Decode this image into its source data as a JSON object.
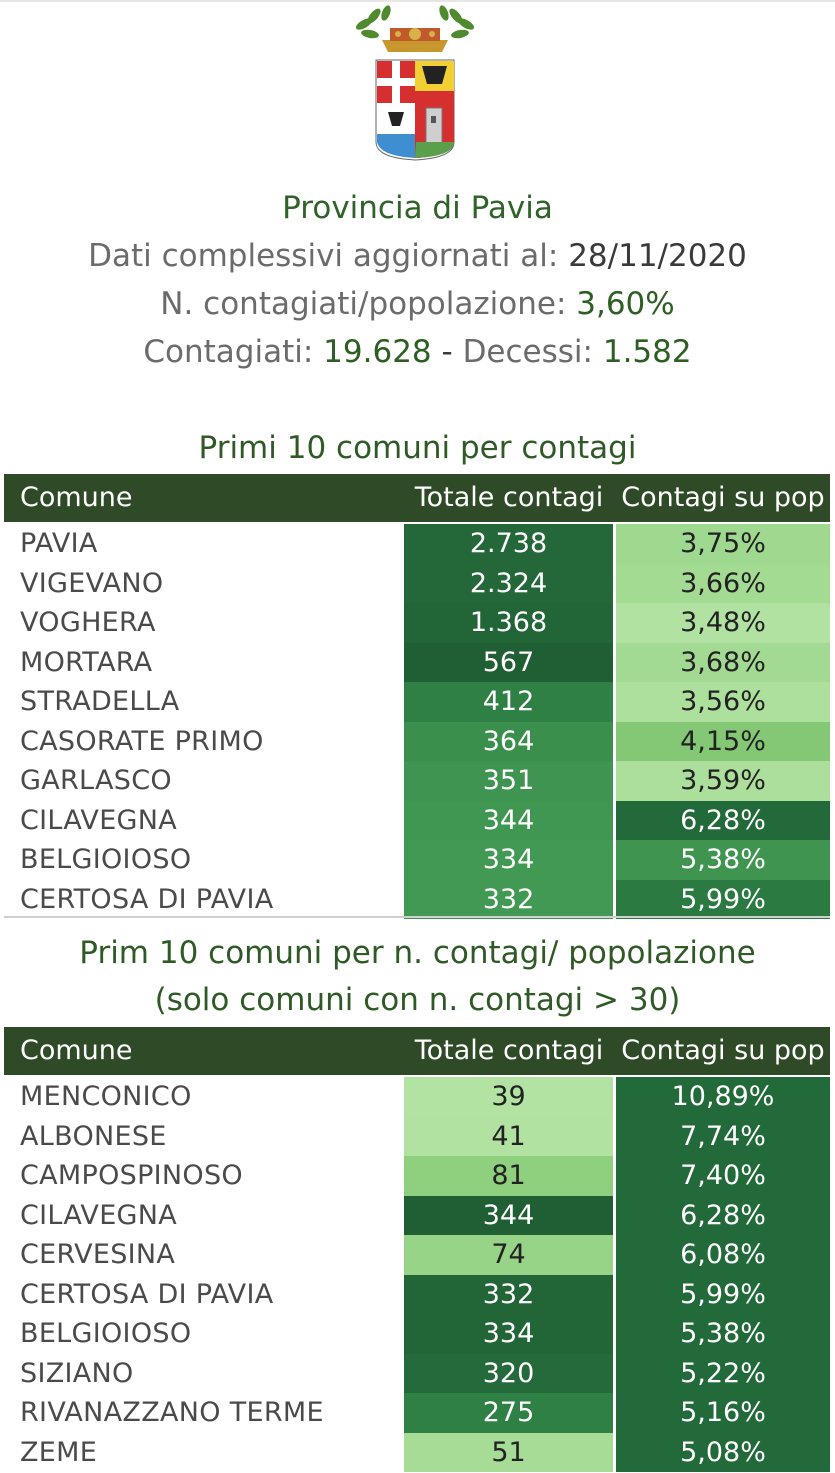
{
  "header": {
    "province": "Provincia di Pavia",
    "updated_label": "Dati complessivi aggiornati al:",
    "updated_value": "28/11/2020",
    "ratio_label": "N. contagiati/popolazione:",
    "ratio_value": "3,60%",
    "cases_label": "Contagiati:",
    "cases_value": "19.628",
    "separator": "-",
    "deaths_label": "Decessi:",
    "deaths_value": "1.582"
  },
  "table1": {
    "title": "Primi 10 comuni per contagi",
    "columns": [
      "Comune",
      "Totale contagi",
      "Contagi su pop"
    ],
    "rows": [
      {
        "comune": "PAVIA",
        "totale": "2.738",
        "pop": "3,75%",
        "tot_bg": "#24683a",
        "pop_bg": "#9fd98f"
      },
      {
        "comune": "VIGEVANO",
        "totale": "2.324",
        "pop": "3,66%",
        "tot_bg": "#24683a",
        "pop_bg": "#a4db93"
      },
      {
        "comune": "VOGHERA",
        "totale": "1.368",
        "pop": "3,48%",
        "tot_bg": "#226537",
        "pop_bg": "#b2e2a2"
      },
      {
        "comune": "MORTARA",
        "totale": "567",
        "pop": "3,68%",
        "tot_bg": "#205e33",
        "pop_bg": "#a3da93"
      },
      {
        "comune": "STRADELLA",
        "totale": "412",
        "pop": "3,56%",
        "tot_bg": "#2f8045",
        "pop_bg": "#ade09d"
      },
      {
        "comune": "CASORATE PRIMO",
        "totale": "364",
        "pop": "4,15%",
        "tot_bg": "#3a8f4c",
        "pop_bg": "#84c774"
      },
      {
        "comune": "GARLASCO",
        "totale": "351",
        "pop": "3,59%",
        "tot_bg": "#3e9450",
        "pop_bg": "#abdf9b"
      },
      {
        "comune": "CILAVEGNA",
        "totale": "344",
        "pop": "6,28%",
        "tot_bg": "#409752",
        "pop_bg": "#236a3a"
      },
      {
        "comune": "BELGIOIOSO",
        "totale": "334",
        "pop": "5,38%",
        "tot_bg": "#429954",
        "pop_bg": "#3f9450"
      },
      {
        "comune": "CERTOSA DI PAVIA",
        "totale": "332",
        "pop": "5,99%",
        "tot_bg": "#429954",
        "pop_bg": "#2a7a41"
      }
    ]
  },
  "table2": {
    "title_line1": "Prim 10 comuni per n. contagi/ popolazione",
    "title_line2": "(solo comuni con n. contagi > 30)",
    "columns": [
      "Comune",
      "Totale contagi",
      "Contagi su pop"
    ],
    "rows": [
      {
        "comune": "MENCONICO",
        "totale": "39",
        "pop": "10,89%",
        "tot_bg": "#b3e3a3",
        "pop_bg": "#236a3a"
      },
      {
        "comune": "ALBONESE",
        "totale": "41",
        "pop": "7,74%",
        "tot_bg": "#b1e2a1",
        "pop_bg": "#236a3a"
      },
      {
        "comune": "CAMPOSPINOSO",
        "totale": "81",
        "pop": "7,40%",
        "tot_bg": "#8fd07f",
        "pop_bg": "#236a3a"
      },
      {
        "comune": "CILAVEGNA",
        "totale": "344",
        "pop": "6,28%",
        "tot_bg": "#205e33",
        "pop_bg": "#236a3a"
      },
      {
        "comune": "CERVESINA",
        "totale": "74",
        "pop": "6,08%",
        "tot_bg": "#98d488",
        "pop_bg": "#236a3a"
      },
      {
        "comune": "CERTOSA DI PAVIA",
        "totale": "332",
        "pop": "5,99%",
        "tot_bg": "#226537",
        "pop_bg": "#236a3a"
      },
      {
        "comune": "BELGIOIOSO",
        "totale": "334",
        "pop": "5,38%",
        "tot_bg": "#226537",
        "pop_bg": "#236a3a"
      },
      {
        "comune": "SIZIANO",
        "totale": "320",
        "pop": "5,22%",
        "tot_bg": "#246a3a",
        "pop_bg": "#236a3a"
      },
      {
        "comune": "RIVANAZZANO TERME",
        "totale": "275",
        "pop": "5,16%",
        "tot_bg": "#2f8045",
        "pop_bg": "#236a3a"
      },
      {
        "comune": "ZEME",
        "totale": "51",
        "pop": "5,08%",
        "tot_bg": "#a6dc96",
        "pop_bg": "#236a3a"
      }
    ]
  }
}
